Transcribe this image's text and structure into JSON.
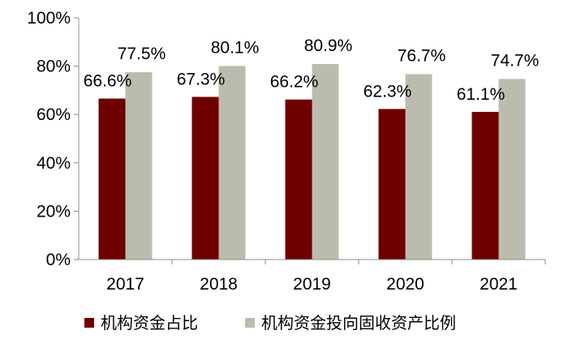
{
  "chart_data": {
    "type": "bar",
    "title": "",
    "xlabel": "",
    "ylabel": "",
    "categories": [
      "2017",
      "2018",
      "2019",
      "2020",
      "2021"
    ],
    "ylim": [
      0,
      100
    ],
    "yticks": [
      "0%",
      "20%",
      "40%",
      "60%",
      "80%",
      "100%"
    ],
    "grid": false,
    "legend_position": "bottom",
    "series": [
      {
        "name": "机构资金占比",
        "color": "#6e0000",
        "values": [
          66.6,
          67.3,
          66.2,
          62.3,
          61.1
        ],
        "labels": [
          "66.6%",
          "67.3%",
          "66.2%",
          "62.3%",
          "61.1%"
        ]
      },
      {
        "name": "机构资金投向固收资产比例",
        "color": "#bcbcae",
        "values": [
          77.5,
          80.1,
          80.9,
          76.7,
          74.7
        ],
        "labels": [
          "77.5%",
          "80.1%",
          "80.9%",
          "76.7%",
          "74.7%"
        ]
      }
    ]
  }
}
